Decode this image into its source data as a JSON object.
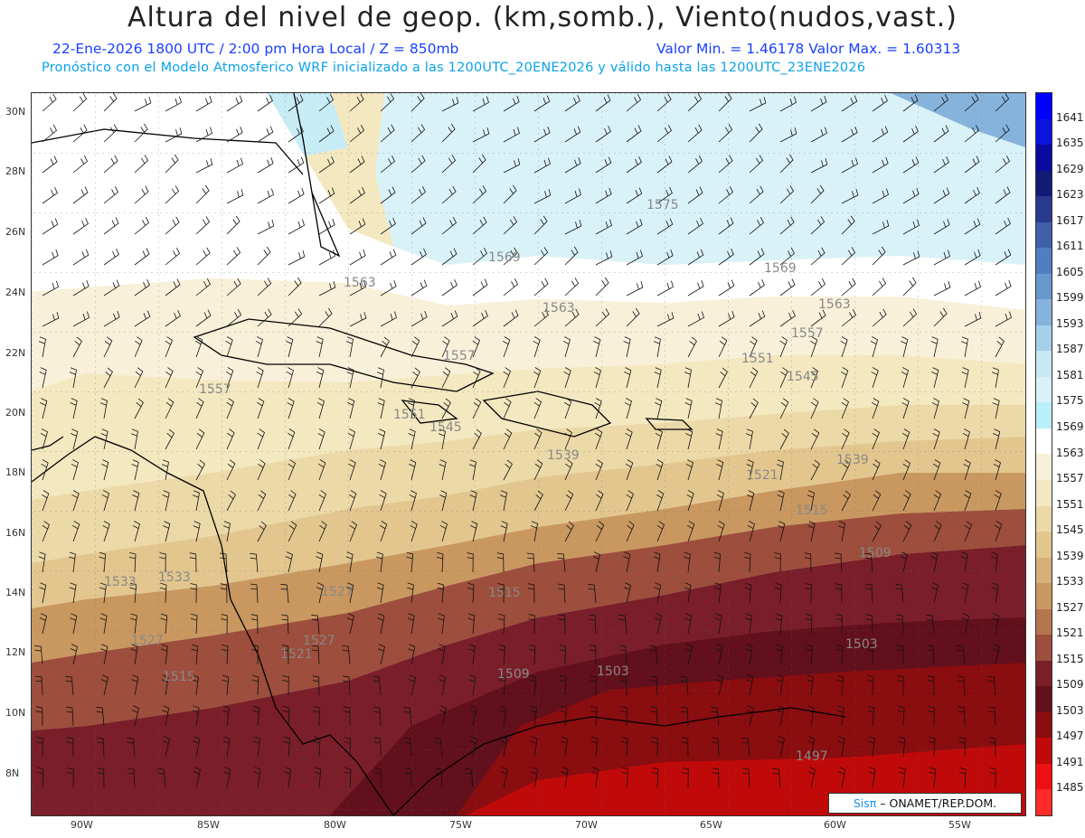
{
  "header": {
    "title": "Altura del nivel de geop. (km,somb.), Viento(nudos,vast.)",
    "subtitle_left": "22-Ene-2026  1800 UTC / 2:00 pm Hora Local / Z = 850mb",
    "subtitle_right": "Valor Min. = 1.46178  Valor Max. = 1.60313",
    "forecast_line": "Pronóstico con el Modelo Atmosferico WRF inicializado a las 1200UTC_20ENE2026 y válido hasta las  1200UTC_23ENE2026"
  },
  "map": {
    "lon_labels": [
      "90W",
      "85W",
      "80W",
      "75W",
      "70W",
      "65W",
      "60W",
      "55W"
    ],
    "lat_labels": [
      "30N",
      "28N",
      "26N",
      "24N",
      "22N",
      "20N",
      "18N",
      "16N",
      "14N",
      "12N",
      "10N",
      "8N"
    ],
    "contour_labels": [
      "1575",
      "1569",
      "1569",
      "1563",
      "1563",
      "1563",
      "1557",
      "1557",
      "1557",
      "1551",
      "1551",
      "1545",
      "1545",
      "1539",
      "1539",
      "1533",
      "1533",
      "1527",
      "1527",
      "1527",
      "1521",
      "1521",
      "1515",
      "1515",
      "1515",
      "1509",
      "1509",
      "1503",
      "1503",
      "1497"
    ]
  },
  "colorbar": {
    "levels": [
      "1641",
      "1635",
      "1629",
      "1623",
      "1617",
      "1611",
      "1605",
      "1599",
      "1593",
      "1587",
      "1581",
      "1575",
      "1569",
      "1563",
      "1557",
      "1551",
      "1545",
      "1539",
      "1533",
      "1527",
      "1521",
      "1515",
      "1509",
      "1503",
      "1497",
      "1491",
      "1485"
    ],
    "colors": [
      "#0000ff",
      "#0a14dc",
      "#0a0aa0",
      "#121a78",
      "#2a3a8c",
      "#3f5fa8",
      "#4f7fc0",
      "#6799cc",
      "#86b3dc",
      "#a6cfea",
      "#c8e8f3",
      "#d9f2f8",
      "#b8eff8",
      "#ffffff",
      "#f8f0d8",
      "#f3e8c0",
      "#ecd9a8",
      "#e2c68e",
      "#d6b078",
      "#c99860",
      "#b5764d",
      "#9d4e3c",
      "#7a1f2a",
      "#62101c",
      "#8a0d10",
      "#c00a0a",
      "#ee1010",
      "#ff2a2a"
    ]
  },
  "credit": {
    "brand": "Sisπ",
    "org": " – ONAMET/REP.DOM."
  }
}
